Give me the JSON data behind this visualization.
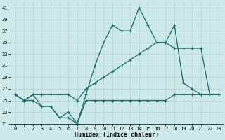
{
  "xlabel": "Humidex (Indice chaleur)",
  "bg_color": "#cce8e8",
  "grid_color": "#aad4d4",
  "line_color": "#1a6b6b",
  "xlim": [
    -0.5,
    23.5
  ],
  "ylim": [
    21,
    42
  ],
  "yticks": [
    21,
    23,
    25,
    27,
    29,
    31,
    33,
    35,
    37,
    39,
    41
  ],
  "xticks": [
    0,
    1,
    2,
    3,
    4,
    5,
    6,
    7,
    8,
    9,
    10,
    11,
    12,
    13,
    14,
    15,
    16,
    17,
    18,
    19,
    20,
    21,
    22,
    23
  ],
  "line1_x": [
    0,
    1,
    2,
    3,
    4,
    5,
    6,
    7,
    8,
    9,
    10,
    11,
    12,
    13,
    14,
    15,
    16,
    17,
    18,
    19,
    20,
    21,
    22,
    23
  ],
  "line1_y": [
    26,
    25,
    26,
    24,
    24,
    22,
    23,
    21,
    26,
    31,
    35,
    38,
    37,
    37,
    41,
    38,
    35,
    35,
    38,
    28,
    27,
    26,
    26,
    26
  ],
  "line2_x": [
    0,
    1,
    2,
    3,
    4,
    5,
    6,
    7,
    8,
    9,
    10,
    11,
    12,
    13,
    14,
    15,
    16,
    17,
    18,
    19,
    20,
    21,
    22,
    23
  ],
  "line2_y": [
    26,
    25,
    26,
    26,
    26,
    26,
    26,
    25,
    27,
    28,
    29,
    30,
    31,
    32,
    33,
    34,
    35,
    35,
    34,
    34,
    34,
    34,
    26,
    26
  ],
  "line3_x": [
    0,
    1,
    2,
    3,
    4,
    5,
    6,
    7,
    8,
    9,
    10,
    11,
    12,
    13,
    14,
    15,
    16,
    17,
    18,
    19,
    20,
    21,
    22,
    23
  ],
  "line3_y": [
    26,
    25,
    25,
    24,
    24,
    22,
    22,
    21,
    25,
    25,
    25,
    25,
    25,
    25,
    25,
    25,
    25,
    25,
    26,
    26,
    26,
    26,
    26,
    26
  ]
}
